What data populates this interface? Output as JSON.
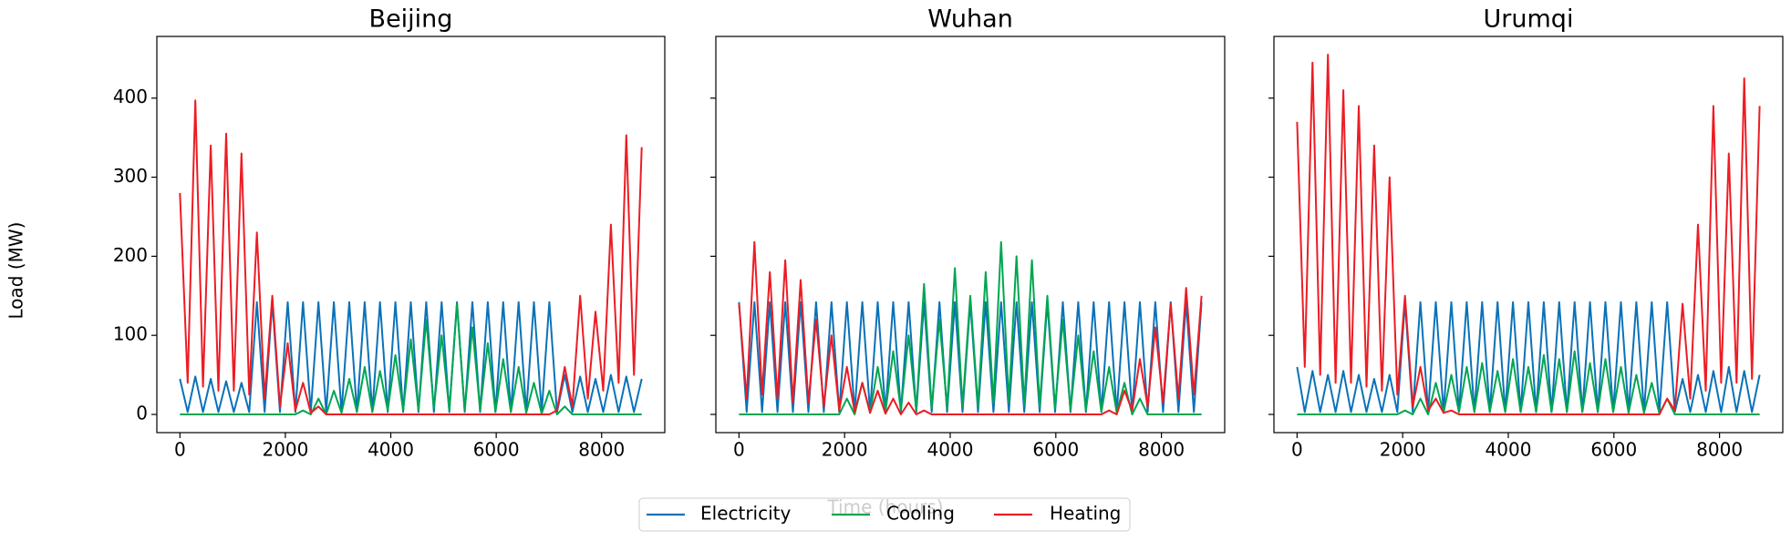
{
  "chart_data": [
    {
      "type": "line",
      "title": "Beijing",
      "ylabel": "Load (MW)",
      "x": [
        0,
        146,
        292,
        438,
        584,
        730,
        876,
        1022,
        1168,
        1314,
        1460,
        1606,
        1752,
        1898,
        2044,
        2190,
        2336,
        2482,
        2628,
        2774,
        2920,
        3066,
        3212,
        3358,
        3504,
        3650,
        3796,
        3942,
        4088,
        4234,
        4380,
        4526,
        4672,
        4818,
        4964,
        5110,
        5256,
        5402,
        5548,
        5694,
        5840,
        5986,
        6132,
        6278,
        6424,
        6570,
        6716,
        6862,
        7008,
        7154,
        7300,
        7446,
        7592,
        7738,
        7884,
        8030,
        8176,
        8322,
        8468,
        8614,
        8760
      ],
      "xlim": [
        -438,
        9198
      ],
      "xticks": [
        0,
        2000,
        4000,
        6000,
        8000
      ],
      "ylim": [
        -23,
        478
      ],
      "yticks": [
        0,
        100,
        200,
        300,
        400
      ],
      "series": [
        {
          "name": "Electricity",
          "color": "#0a72b8",
          "values": [
            45,
            3,
            48,
            3,
            45,
            3,
            42,
            3,
            40,
            3,
            142,
            3,
            142,
            3,
            142,
            3,
            142,
            3,
            142,
            3,
            142,
            3,
            142,
            3,
            142,
            3,
            142,
            3,
            142,
            3,
            142,
            3,
            142,
            3,
            142,
            3,
            142,
            3,
            142,
            3,
            142,
            3,
            142,
            3,
            142,
            3,
            142,
            3,
            142,
            3,
            50,
            3,
            48,
            3,
            45,
            3,
            50,
            3,
            48,
            3,
            45
          ]
        },
        {
          "name": "Cooling",
          "color": "#00a651",
          "values": [
            0,
            0,
            0,
            0,
            0,
            0,
            0,
            0,
            0,
            0,
            0,
            0,
            0,
            0,
            0,
            0,
            5,
            0,
            20,
            0,
            30,
            2,
            45,
            3,
            60,
            3,
            55,
            5,
            75,
            5,
            95,
            5,
            120,
            8,
            100,
            5,
            140,
            5,
            110,
            5,
            90,
            3,
            70,
            3,
            60,
            2,
            40,
            1,
            30,
            0,
            10,
            0,
            0,
            0,
            0,
            0,
            0,
            0,
            0,
            0,
            0
          ]
        },
        {
          "name": "Heating",
          "color": "#ed1c24",
          "values": [
            280,
            40,
            397,
            35,
            340,
            30,
            355,
            30,
            330,
            25,
            230,
            20,
            150,
            10,
            90,
            5,
            40,
            2,
            10,
            0,
            0,
            0,
            0,
            0,
            0,
            0,
            0,
            0,
            0,
            0,
            0,
            0,
            0,
            0,
            0,
            0,
            0,
            0,
            0,
            0,
            0,
            0,
            0,
            0,
            0,
            0,
            0,
            0,
            0,
            5,
            60,
            10,
            150,
            20,
            130,
            30,
            240,
            40,
            353,
            50,
            338
          ]
        }
      ]
    },
    {
      "type": "line",
      "title": "Wuhan",
      "xlabel": "Time (hours)",
      "x": [
        0,
        146,
        292,
        438,
        584,
        730,
        876,
        1022,
        1168,
        1314,
        1460,
        1606,
        1752,
        1898,
        2044,
        2190,
        2336,
        2482,
        2628,
        2774,
        2920,
        3066,
        3212,
        3358,
        3504,
        3650,
        3796,
        3942,
        4088,
        4234,
        4380,
        4526,
        4672,
        4818,
        4964,
        5110,
        5256,
        5402,
        5548,
        5694,
        5840,
        5986,
        6132,
        6278,
        6424,
        6570,
        6716,
        6862,
        7008,
        7154,
        7300,
        7446,
        7592,
        7738,
        7884,
        8030,
        8176,
        8322,
        8468,
        8614,
        8760
      ],
      "xlim": [
        -438,
        9198
      ],
      "xticks": [
        0,
        2000,
        4000,
        6000,
        8000
      ],
      "ylim": [
        -23,
        478
      ],
      "yticks": [
        0,
        100,
        200,
        300,
        400
      ],
      "series": [
        {
          "color": "#0a72b8",
          "values": [
            142,
            3,
            142,
            3,
            142,
            3,
            142,
            3,
            142,
            3,
            142,
            3,
            142,
            3,
            142,
            3,
            142,
            3,
            142,
            3,
            142,
            3,
            142,
            3,
            142,
            3,
            142,
            3,
            142,
            3,
            142,
            3,
            142,
            3,
            142,
            3,
            142,
            3,
            142,
            3,
            142,
            3,
            142,
            3,
            142,
            3,
            142,
            3,
            142,
            3,
            142,
            3,
            142,
            3,
            142,
            3,
            142,
            3,
            142,
            3,
            142
          ]
        },
        {
          "color": "#00a651",
          "values": [
            0,
            0,
            0,
            0,
            0,
            0,
            0,
            0,
            0,
            0,
            0,
            0,
            0,
            0,
            20,
            0,
            40,
            2,
            60,
            3,
            80,
            5,
            100,
            5,
            165,
            8,
            120,
            8,
            185,
            10,
            150,
            10,
            180,
            15,
            218,
            15,
            200,
            12,
            195,
            10,
            150,
            8,
            120,
            5,
            100,
            5,
            80,
            3,
            60,
            2,
            40,
            0,
            20,
            0,
            0,
            0,
            0,
            0,
            0,
            0,
            0
          ]
        },
        {
          "color": "#ed1c24",
          "values": [
            140,
            20,
            218,
            25,
            180,
            20,
            195,
            15,
            170,
            15,
            120,
            10,
            100,
            5,
            60,
            3,
            40,
            2,
            30,
            1,
            20,
            0,
            15,
            0,
            5,
            0,
            0,
            0,
            0,
            0,
            0,
            0,
            0,
            0,
            0,
            0,
            0,
            0,
            0,
            0,
            0,
            0,
            0,
            0,
            0,
            0,
            0,
            0,
            5,
            0,
            30,
            5,
            70,
            10,
            110,
            15,
            140,
            20,
            160,
            25,
            150
          ]
        }
      ]
    },
    {
      "type": "line",
      "title": "Urumqi",
      "x": [
        0,
        146,
        292,
        438,
        584,
        730,
        876,
        1022,
        1168,
        1314,
        1460,
        1606,
        1752,
        1898,
        2044,
        2190,
        2336,
        2482,
        2628,
        2774,
        2920,
        3066,
        3212,
        3358,
        3504,
        3650,
        3796,
        3942,
        4088,
        4234,
        4380,
        4526,
        4672,
        4818,
        4964,
        5110,
        5256,
        5402,
        5548,
        5694,
        5840,
        5986,
        6132,
        6278,
        6424,
        6570,
        6716,
        6862,
        7008,
        7154,
        7300,
        7446,
        7592,
        7738,
        7884,
        8030,
        8176,
        8322,
        8468,
        8614,
        8760
      ],
      "xlim": [
        -438,
        9198
      ],
      "xticks": [
        0,
        2000,
        4000,
        6000,
        8000
      ],
      "ylim": [
        -23,
        478
      ],
      "yticks": [
        0,
        100,
        200,
        300,
        400
      ],
      "series": [
        {
          "color": "#0a72b8",
          "values": [
            60,
            3,
            55,
            3,
            50,
            3,
            55,
            3,
            50,
            3,
            45,
            3,
            50,
            3,
            142,
            3,
            142,
            3,
            142,
            3,
            142,
            3,
            142,
            3,
            142,
            3,
            142,
            3,
            142,
            3,
            142,
            3,
            142,
            3,
            142,
            3,
            142,
            3,
            142,
            3,
            142,
            3,
            142,
            3,
            142,
            3,
            142,
            3,
            142,
            3,
            45,
            3,
            50,
            3,
            55,
            3,
            60,
            3,
            55,
            3,
            50
          ]
        },
        {
          "color": "#00a651",
          "values": [
            0,
            0,
            0,
            0,
            0,
            0,
            0,
            0,
            0,
            0,
            0,
            0,
            0,
            0,
            5,
            0,
            20,
            0,
            40,
            2,
            50,
            3,
            60,
            3,
            65,
            3,
            55,
            3,
            70,
            3,
            60,
            3,
            75,
            3,
            70,
            3,
            80,
            3,
            65,
            3,
            70,
            3,
            60,
            2,
            50,
            2,
            40,
            1,
            20,
            0,
            0,
            0,
            0,
            0,
            0,
            0,
            0,
            0,
            0,
            0,
            0
          ]
        },
        {
          "color": "#ed1c24",
          "values": [
            370,
            60,
            445,
            50,
            455,
            40,
            410,
            40,
            390,
            35,
            340,
            30,
            300,
            25,
            150,
            10,
            60,
            5,
            20,
            2,
            5,
            0,
            0,
            0,
            0,
            0,
            0,
            0,
            0,
            0,
            0,
            0,
            0,
            0,
            0,
            0,
            0,
            0,
            0,
            0,
            0,
            0,
            0,
            0,
            0,
            0,
            0,
            0,
            20,
            5,
            140,
            20,
            240,
            30,
            390,
            40,
            330,
            40,
            425,
            45,
            390
          ]
        }
      ]
    }
  ]
}
